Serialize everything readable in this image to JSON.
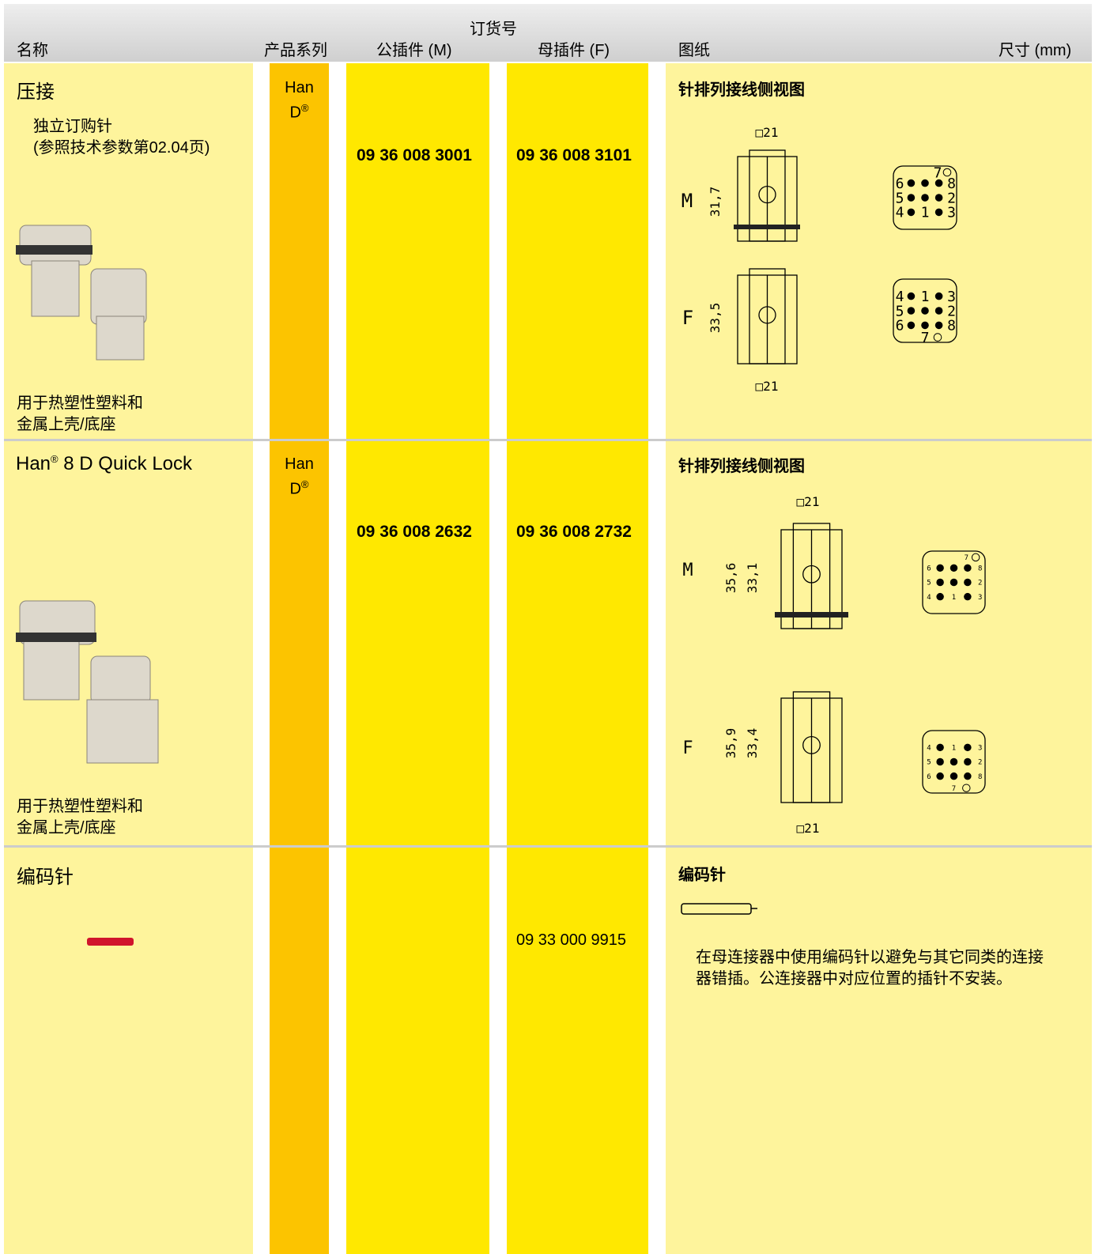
{
  "header": {
    "order_no": "订货号",
    "columns": [
      "名称",
      "产品系列",
      "公插件 (M)",
      "母插件 (F)",
      "图纸",
      "尺寸 (mm)"
    ]
  },
  "rows": [
    {
      "name": "压接",
      "note": [
        "独立订购针",
        "(参照技术参数第02.04页)"
      ],
      "series": [
        "Han",
        "D",
        "®"
      ],
      "male": "09 36 008 3001",
      "female": "09 36 008 3101",
      "usage": [
        "用于热塑性塑料和",
        "金属上壳/底座"
      ],
      "drawing_title": "针排列接线侧视图",
      "drawing": {
        "male_label": "M",
        "female_label": "F",
        "male_width": "□21",
        "female_width": "□21",
        "male_height": [
          "31,7"
        ],
        "female_height": [
          "33,5"
        ],
        "male_pins": [
          "7",
          "6",
          "8",
          "5",
          "2",
          "4",
          "1",
          "3"
        ],
        "female_pins": [
          "4",
          "1",
          "3",
          "5",
          "2",
          "6",
          "8",
          "7"
        ]
      }
    },
    {
      "name": [
        "Han",
        "®",
        " 8 D Quick Lock"
      ],
      "series": [
        "Han",
        "D",
        "®"
      ],
      "male": "09 36 008 2632",
      "female": "09 36 008 2732",
      "usage": [
        "用于热塑性塑料和",
        "金属上壳/底座"
      ],
      "drawing_title": "针排列接线侧视图",
      "drawing": {
        "male_label": "M",
        "female_label": "F",
        "male_width": "□21",
        "female_width": "□21",
        "male_height": [
          "35,6",
          "33,1"
        ],
        "female_height": [
          "35,9",
          "33,4"
        ],
        "male_pins": [
          "7",
          "6",
          "8",
          "5",
          "2",
          "4",
          "1",
          "3"
        ],
        "female_pins": [
          "4",
          "1",
          "3",
          "5",
          "2",
          "6",
          "8",
          "7"
        ]
      }
    },
    {
      "name": "编码针",
      "female": "09 33 000 9915",
      "drawing_title": "编码针",
      "description": [
        "在母连接器中使用编码针以避免与其它同类的连接",
        "器错插。公连接器中对应位置的插针不安装。"
      ]
    }
  ]
}
